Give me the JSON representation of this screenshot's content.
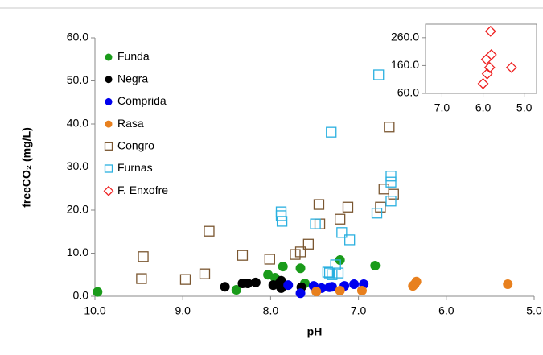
{
  "chart_data": [
    {
      "type": "scatter",
      "xlabel": "pH",
      "ylabel": "freeCO₂ (mg/L)",
      "xlim": [
        10,
        5
      ],
      "ylim": [
        0,
        60
      ],
      "xticks": [
        {
          "value": 10,
          "label": "10.0"
        },
        {
          "value": 9,
          "label": "9.0"
        },
        {
          "value": 8,
          "label": "8.0"
        },
        {
          "value": 7,
          "label": "7.0"
        },
        {
          "value": 6,
          "label": "6.0"
        },
        {
          "value": 5,
          "label": "5.0"
        }
      ],
      "yticks": [
        {
          "value": 0,
          "label": "0.0"
        },
        {
          "value": 10,
          "label": "10.0"
        },
        {
          "value": 20,
          "label": "20.0"
        },
        {
          "value": 30,
          "label": "30.0"
        },
        {
          "value": 40,
          "label": "40.0"
        },
        {
          "value": 50,
          "label": "50.0"
        },
        {
          "value": 60,
          "label": "60.0"
        }
      ],
      "series": [
        {
          "name": "Funda",
          "color": "#1a9b1a",
          "marker": "circle",
          "x": [
            9.97,
            8.39,
            8.03,
            7.95,
            7.86,
            7.66,
            7.61,
            7.21,
            6.81
          ],
          "values": [
            1.0,
            1.5,
            5.0,
            4.3,
            6.9,
            6.5,
            3.0,
            8.4,
            7.1
          ]
        },
        {
          "name": "Negra",
          "color": "#000000",
          "marker": "circle",
          "x": [
            8.52,
            8.32,
            8.26,
            8.17,
            7.97,
            7.9,
            7.88,
            7.88,
            7.65
          ],
          "values": [
            2.2,
            3.0,
            3.0,
            3.2,
            2.6,
            3.0,
            3.6,
            1.9,
            2.1
          ]
        },
        {
          "name": "Comprida",
          "color": "#0000ee",
          "marker": "circle",
          "x": [
            7.8,
            7.66,
            7.51,
            7.42,
            7.33,
            7.3,
            7.16,
            7.05,
            6.94
          ],
          "values": [
            2.6,
            0.7,
            2.4,
            1.9,
            2.1,
            2.2,
            2.4,
            2.8,
            2.8
          ]
        },
        {
          "name": "Rasa",
          "color": "#e8801e",
          "marker": "circle",
          "x": [
            7.48,
            7.21,
            6.96,
            6.38,
            6.36,
            6.34,
            5.3
          ],
          "values": [
            1.1,
            1.3,
            1.3,
            2.4,
            2.8,
            3.4,
            2.8
          ]
        },
        {
          "name": "Congro",
          "color": "#7a5630",
          "marker": "square",
          "x": [
            9.45,
            9.47,
            8.97,
            8.75,
            8.7,
            8.32,
            8.01,
            7.72,
            7.66,
            7.57,
            7.44,
            7.45,
            7.21,
            7.12,
            6.75,
            6.71,
            6.6,
            6.65
          ],
          "values": [
            9.2,
            4.1,
            3.9,
            5.2,
            15.1,
            9.5,
            8.6,
            9.7,
            10.3,
            12.1,
            16.8,
            21.3,
            17.9,
            20.7,
            20.7,
            24.9,
            23.7,
            39.3
          ]
        },
        {
          "name": "Furnas",
          "color": "#2ab0e0",
          "marker": "square",
          "x": [
            7.88,
            7.88,
            7.87,
            7.49,
            7.31,
            7.35,
            7.33,
            7.3,
            7.26,
            7.23,
            7.19,
            7.1,
            6.79,
            6.77,
            6.63,
            6.63,
            6.63
          ],
          "values": [
            19.6,
            18.7,
            17.4,
            16.8,
            38.1,
            5.6,
            5.4,
            5.0,
            7.3,
            5.4,
            14.8,
            13.1,
            19.3,
            51.4,
            27.9,
            26.5,
            22.1
          ]
        }
      ]
    },
    {
      "type": "scatter",
      "xlim": [
        7.4,
        4.7
      ],
      "ylim": [
        60,
        300
      ],
      "xticks": [
        {
          "value": 7,
          "label": "7.0"
        },
        {
          "value": 6,
          "label": "6.0"
        },
        {
          "value": 5,
          "label": "5.0"
        }
      ],
      "yticks": [
        {
          "value": 60,
          "label": "60.0"
        },
        {
          "value": 160,
          "label": "160.0"
        },
        {
          "value": 260,
          "label": "260.0"
        }
      ],
      "series": [
        {
          "name": "F. Enxofre",
          "color": "#ee2020",
          "marker": "diamond",
          "x": [
            5.82,
            5.8,
            5.92,
            5.84,
            5.9,
            6.0,
            5.31
          ],
          "values": [
            283,
            199,
            182,
            153,
            130,
            95,
            153
          ]
        }
      ]
    }
  ]
}
